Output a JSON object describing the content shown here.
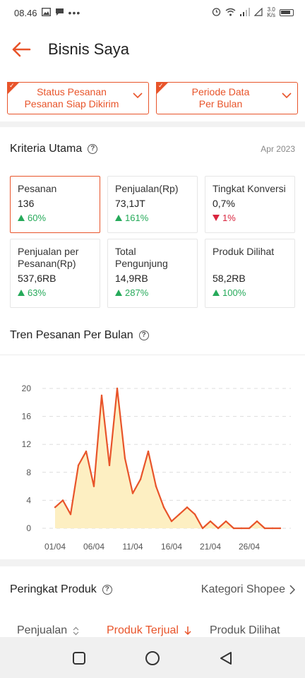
{
  "statusbar": {
    "time": "08.46",
    "dots": "•••",
    "speed_value": "3.0",
    "speed_unit": "K/s"
  },
  "header": {
    "title": "Bisnis Saya"
  },
  "filters": [
    {
      "line1": "Status Pesanan",
      "line2": "Pesanan Siap Dikirim"
    },
    {
      "line1": "Periode Data",
      "line2": "Per Bulan"
    }
  ],
  "kriteria": {
    "title": "Kriteria Utama",
    "date": "Apr 2023",
    "metrics": [
      {
        "label": "Pesanan",
        "value": "136",
        "change": "60%",
        "direction": "up"
      },
      {
        "label": "Penjualan(Rp)",
        "value": "73,1JT",
        "change": "161%",
        "direction": "up"
      },
      {
        "label": "Tingkat Konversi",
        "value": "0,7%",
        "change": "1%",
        "direction": "down"
      },
      {
        "label": "Penjualan per Pesanan(Rp)",
        "value": "537,6RB",
        "change": "63%",
        "direction": "up"
      },
      {
        "label": "Total Pengunjung",
        "value": "14,9RB",
        "change": "287%",
        "direction": "up"
      },
      {
        "label": "Produk Dilihat",
        "value": "58,2RB",
        "change": "100%",
        "direction": "up"
      }
    ]
  },
  "trend": {
    "title": "Tren Pesanan Per Bulan"
  },
  "chart_data": {
    "type": "area",
    "title": "Tren Pesanan Per Bulan",
    "x": [
      "01/04",
      "02/04",
      "03/04",
      "04/04",
      "05/04",
      "06/04",
      "07/04",
      "08/04",
      "09/04",
      "10/04",
      "11/04",
      "12/04",
      "13/04",
      "14/04",
      "15/04",
      "16/04",
      "17/04",
      "18/04",
      "19/04",
      "20/04",
      "21/04",
      "22/04",
      "23/04",
      "24/04",
      "25/04",
      "26/04",
      "27/04",
      "28/04",
      "29/04",
      "30/04"
    ],
    "x_tick_labels": [
      "01/04",
      "06/04",
      "11/04",
      "16/04",
      "21/04",
      "26/04"
    ],
    "series": [
      {
        "values": [
          3,
          4,
          2,
          9,
          11,
          6,
          19,
          9,
          20,
          10,
          5,
          7,
          11,
          6,
          3,
          1,
          2,
          3,
          2,
          0,
          1,
          0,
          1,
          0,
          0,
          0,
          1,
          0,
          0,
          0
        ]
      }
    ],
    "y_ticks": [
      0,
      4,
      8,
      12,
      16,
      20
    ],
    "ylim": [
      0,
      20
    ],
    "grid": true,
    "colors": {
      "line": "#e8542a",
      "fill": "#fdefc2"
    }
  },
  "peringkat": {
    "title": "Peringkat Produk",
    "category_link": "Kategori Shopee",
    "sort_tabs": [
      "Penjualan",
      "Produk Terjual",
      "Produk Dilihat"
    ]
  },
  "colors": {
    "accent": "#e8542a",
    "up": "#26aa5a",
    "down": "#d9263f"
  }
}
